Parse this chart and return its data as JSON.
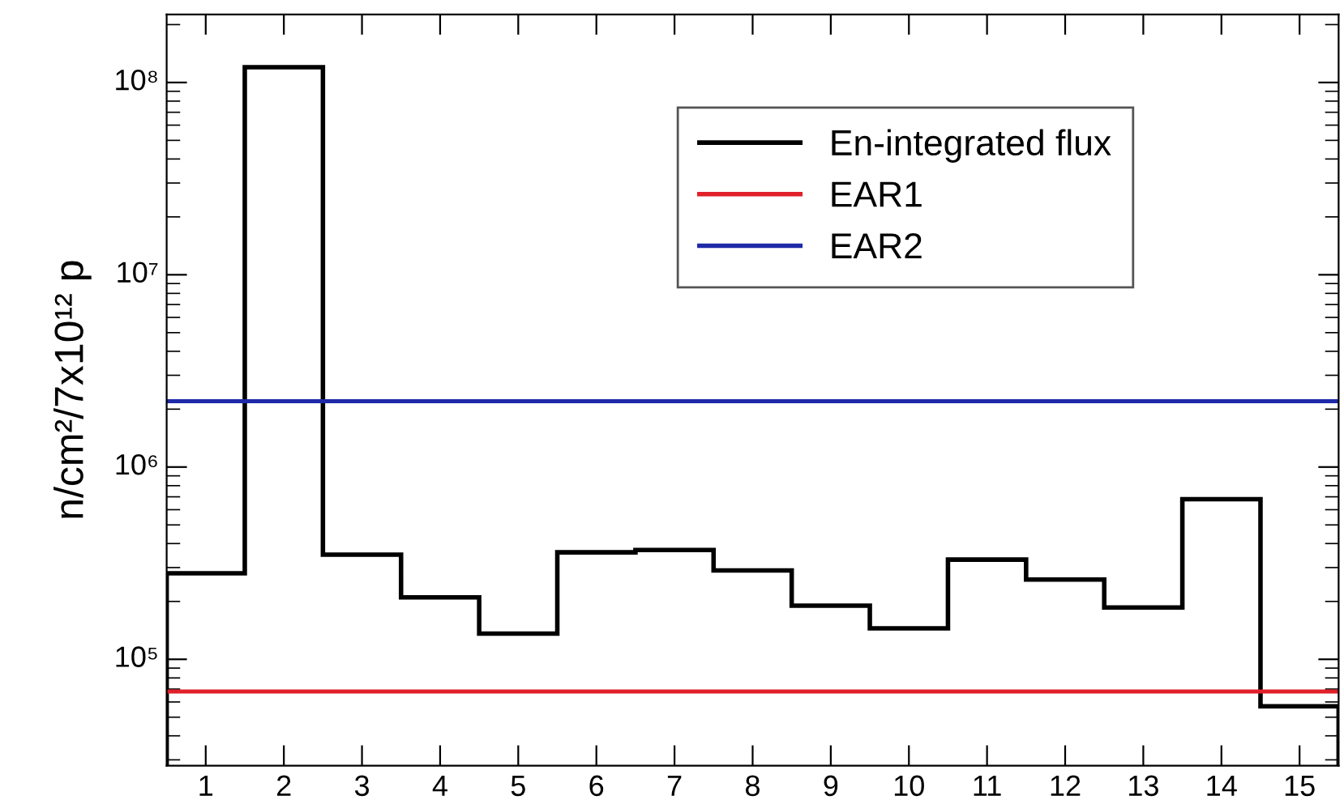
{
  "chart_data": {
    "type": "histogram",
    "ylabel": "n/cm²/7x10¹² p",
    "bins": [
      0.5,
      1.5,
      2.5,
      3.5,
      4.5,
      5.5,
      6.5,
      7.5,
      8.5,
      9.5,
      10.5,
      11.5,
      12.5,
      13.5,
      14.5,
      15.5
    ],
    "series": [
      {
        "name": "En-integrated flux",
        "color": "#000000",
        "values": [
          280000,
          120000000,
          350000,
          210000,
          136000,
          360000,
          370000,
          290000,
          190000,
          145000,
          330000,
          260000,
          186000,
          680000,
          57000
        ]
      }
    ],
    "ref_lines": [
      {
        "axis": "y",
        "value": 68000,
        "label": "EAR1",
        "color": "#e0202a"
      },
      {
        "axis": "y",
        "value": 2200000,
        "label": "EAR2",
        "color": "#1f2aa8"
      }
    ],
    "log": "y",
    "xlim": [
      0.5,
      15.5
    ],
    "xticks": [
      1,
      2,
      3,
      4,
      5,
      6,
      7,
      8,
      9,
      10,
      11,
      12,
      13,
      14,
      15
    ],
    "ylim": [
      28000,
      226000000
    ],
    "yticks": [
      {
        "value": 100000,
        "label": "10⁵"
      },
      {
        "value": 1000000,
        "label": "10⁶"
      },
      {
        "value": 10000000,
        "label": "10⁷"
      },
      {
        "value": 100000000,
        "label": "10⁸"
      }
    ],
    "grid": false,
    "legend": "top right"
  }
}
